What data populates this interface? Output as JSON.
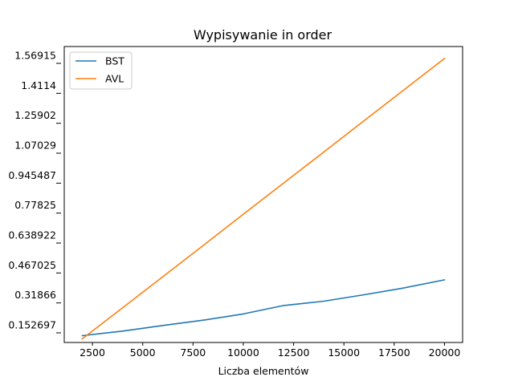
{
  "chart_data": {
    "type": "line",
    "title": "Wypisywanie in order",
    "xlabel": "Liczba elementów",
    "ylabel": "",
    "xlim": [
      1100,
      20900
    ],
    "ylim": [
      0.118,
      1.63
    ],
    "x_ticks": [
      2500,
      5000,
      7500,
      10000,
      12500,
      15000,
      17500,
      20000
    ],
    "y_tick_labels": [
      "0.152697",
      "0.31866",
      "0.467025",
      "0.638922",
      "0.77825",
      "0.945487",
      "1.07029",
      "1.25902",
      "1.4114",
      "1.56915"
    ],
    "grid": false,
    "legend_position": "top-left",
    "series": [
      {
        "name": "BST",
        "color": "#1f77b4",
        "x": [
          2000,
          4000,
          6000,
          8000,
          10000,
          12000,
          14000,
          16000,
          18000,
          20000
        ],
        "y": [
          0.153,
          0.176,
          0.205,
          0.232,
          0.264,
          0.307,
          0.329,
          0.362,
          0.397,
          0.438
        ]
      },
      {
        "name": "AVL",
        "color": "#ff7f0e",
        "x": [
          2000,
          4000,
          6000,
          8000,
          10000,
          12000,
          14000,
          16000,
          18000,
          20000
        ],
        "y": [
          0.137,
          0.295,
          0.454,
          0.613,
          0.773,
          0.932,
          1.091,
          1.251,
          1.41,
          1.569
        ]
      }
    ]
  }
}
